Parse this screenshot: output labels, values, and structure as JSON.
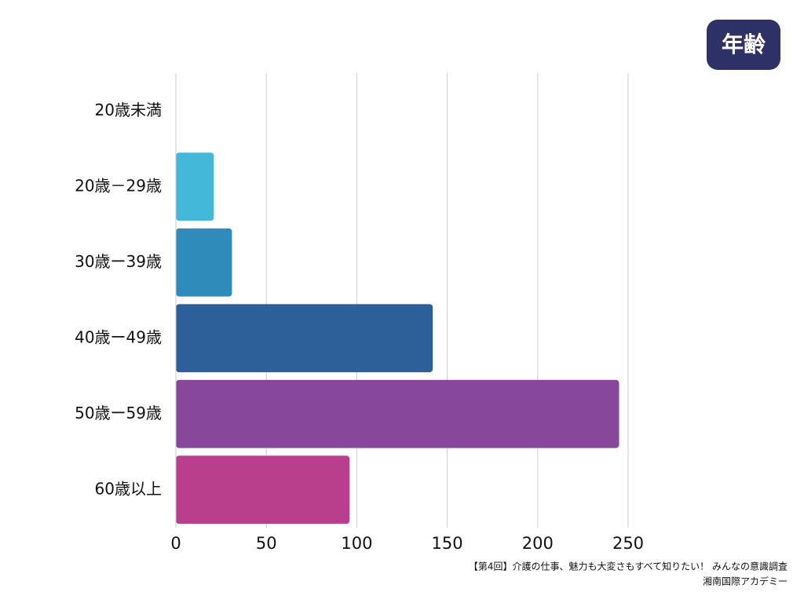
{
  "chart_data": {
    "type": "bar",
    "orientation": "horizontal",
    "title": "年齢",
    "categories": [
      "20歳未満",
      "20歳－29歳",
      "30歳ー39歳",
      "40歳ー49歳",
      "50歳ー59歳",
      "60歳以上"
    ],
    "values": [
      0,
      21,
      31,
      142,
      245,
      96
    ],
    "colors": [
      "#44b8d8",
      "#44b8d8",
      "#2e8bba",
      "#2d5f99",
      "#87479b",
      "#b93f8c"
    ],
    "xlim": [
      0,
      250
    ],
    "xticks": [
      0,
      50,
      100,
      150,
      200,
      250
    ],
    "grid": true,
    "notes": [
      "【第4回】介護の仕事、魅力も大変さもすべて知りたい！ みんなの意識調査",
      "湘南国際アカデミー"
    ]
  }
}
